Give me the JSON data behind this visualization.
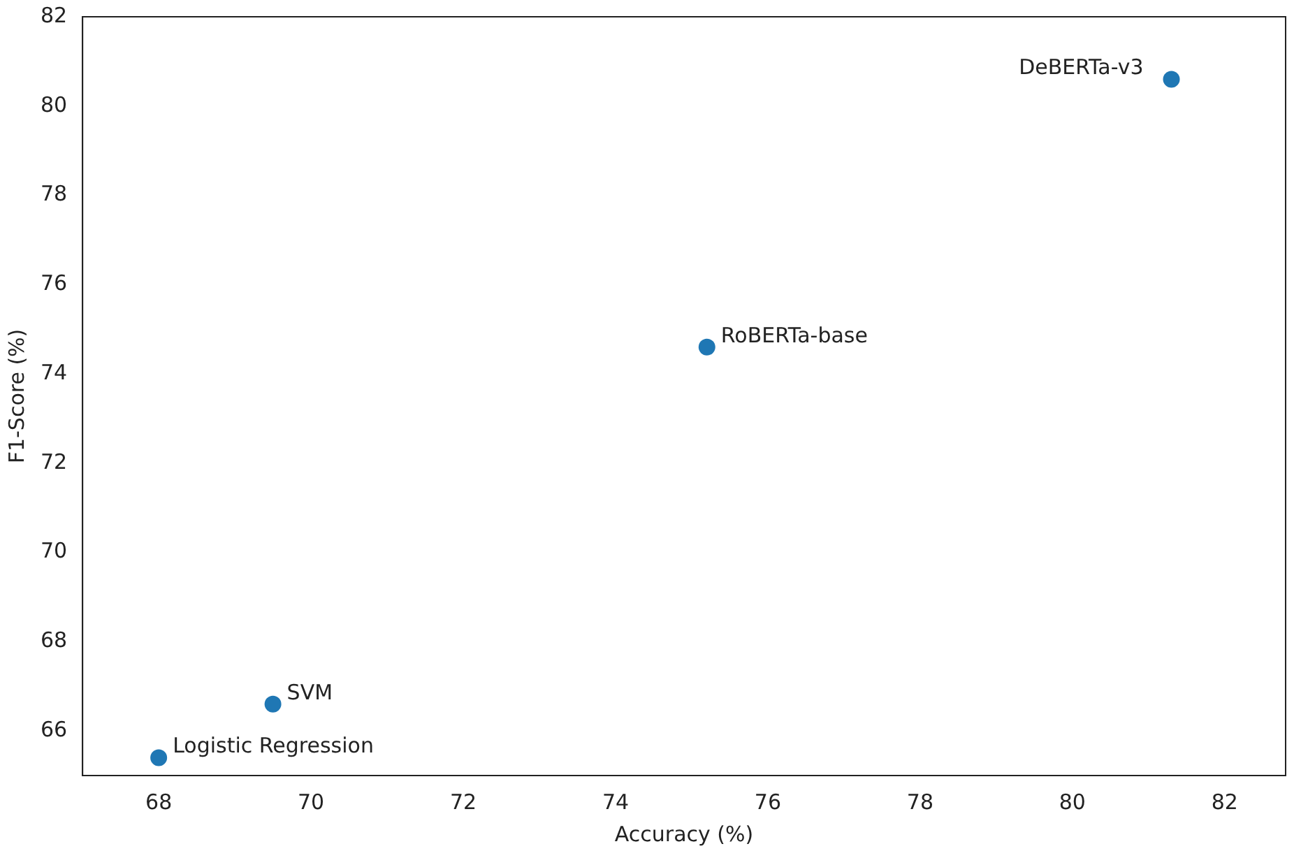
{
  "chart_data": {
    "type": "scatter",
    "xlabel": "Accuracy (%)",
    "ylabel": "F1-Score (%)",
    "x": [
      68.0,
      69.5,
      75.2,
      81.3
    ],
    "series": [
      {
        "color": "#1f77b4",
        "values": [
          65.4,
          66.6,
          74.6,
          80.6
        ]
      }
    ],
    "annotations": [
      {
        "text": "Logistic Regression",
        "x": 68.0,
        "y": 65.4
      },
      {
        "text": "SVM",
        "x": 69.5,
        "y": 66.6
      },
      {
        "text": "RoBERTa-base",
        "x": 75.2,
        "y": 74.6
      },
      {
        "text": "DeBERTa-v3",
        "x": 81.3,
        "y": 80.6
      }
    ],
    "xlim": [
      67,
      82.8
    ],
    "ylim": [
      65,
      82
    ],
    "xticks": [
      68,
      70,
      72,
      74,
      76,
      78,
      80,
      82
    ],
    "yticks": [
      66,
      68,
      70,
      72,
      74,
      76,
      78,
      80,
      82
    ],
    "grid": false,
    "legend": false,
    "marker": "circle"
  }
}
